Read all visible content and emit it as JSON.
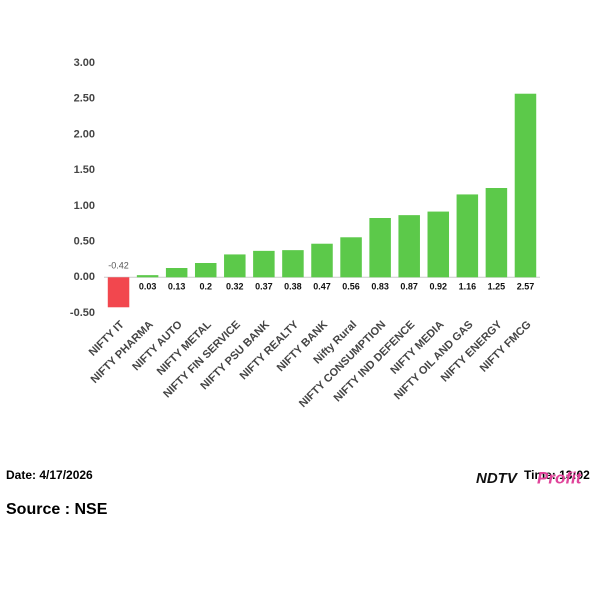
{
  "chart_data": {
    "type": "bar",
    "categories": [
      "NIFTY IT",
      "NIFTY PHARMA",
      "NIFTY AUTO",
      "NIFTY METAL",
      "NIFTY FIN SERVICE",
      "NIFTY PSU BANK",
      "NIFTY REALTY",
      "NIFTY BANK",
      "Nifty Rural",
      "NIFTY CONSUMPTION",
      "NIFTY IND DEFENCE",
      "NIFTY MEDIA",
      "NIFTY OIL AND GAS",
      "NIFTY ENERGY",
      "NIFTY FMCG"
    ],
    "values": [
      -0.42,
      0.03,
      0.13,
      0.2,
      0.32,
      0.37,
      0.38,
      0.47,
      0.56,
      0.83,
      0.87,
      0.92,
      1.16,
      1.25,
      2.57
    ],
    "color": "#5cc94a",
    "negative_color": "#f2474e",
    "ylim": [
      -0.5,
      3.0
    ],
    "yticks": [
      {
        "value": -0.5,
        "label": "-0.50"
      },
      {
        "value": 0,
        "label": "0.00"
      },
      {
        "value": 0.5,
        "label": "0.50"
      },
      {
        "value": 1,
        "label": "1.00"
      },
      {
        "value": 1.5,
        "label": "1.50"
      },
      {
        "value": 2,
        "label": "2.00"
      },
      {
        "value": 2.5,
        "label": "2.50"
      },
      {
        "value": 3,
        "label": "3.00"
      }
    ],
    "grid": false
  },
  "footer": {
    "date": "Date: 4/17/2026",
    "time": "Time: 13:02",
    "source": "Source : NSE",
    "logo_ndtv": "NDTV",
    "logo_profit": "Profit"
  }
}
